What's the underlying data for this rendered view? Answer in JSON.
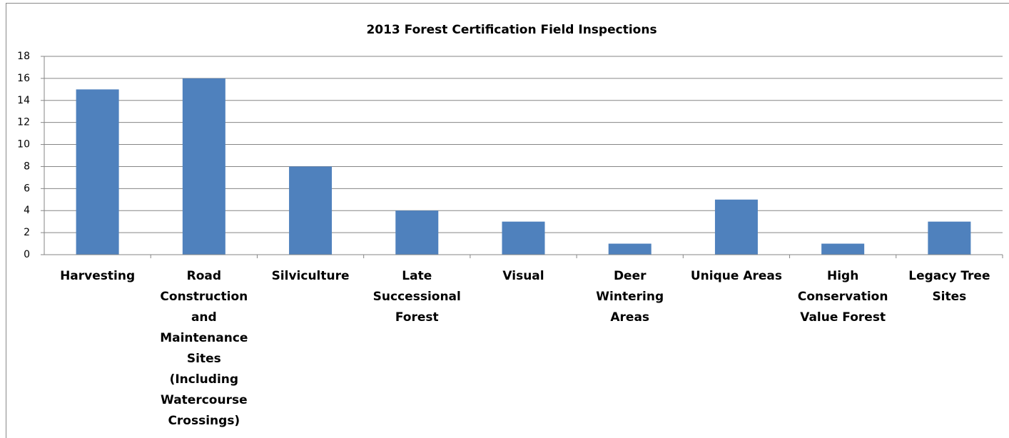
{
  "chart_data": {
    "type": "bar",
    "title": "2013 Forest Certification Field Inspections",
    "categories": [
      "Harvesting",
      "Road Construction and Maintenance Sites (Including Watercourse Crossings)",
      "Silviculture",
      "Late Successional Forest",
      "Visual",
      "Deer Wintering Areas",
      "Unique Areas",
      "High Conservation Value Forest",
      "Legacy Tree Sites"
    ],
    "values": [
      15,
      16,
      8,
      4,
      3,
      1,
      5,
      1,
      3
    ],
    "color": "#4f81bd",
    "ylim": [
      0,
      18
    ],
    "yticks": [
      0,
      2,
      4,
      6,
      8,
      10,
      12,
      14,
      16,
      18
    ],
    "grid": true
  }
}
